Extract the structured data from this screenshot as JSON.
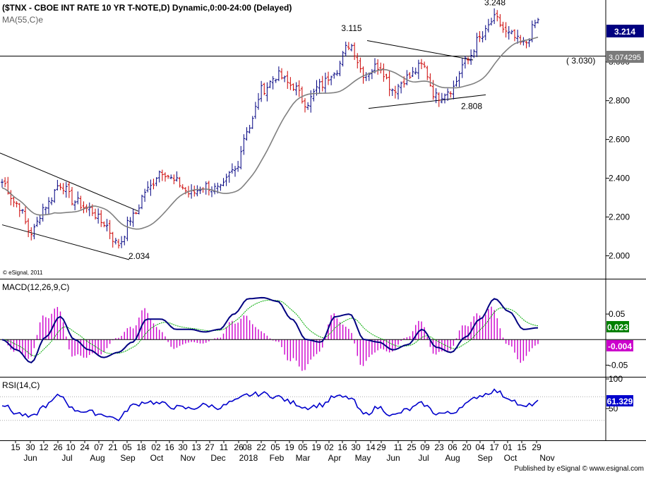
{
  "chart_data": {
    "type": "bar",
    "footer": "Published by eSignal © www.esignal.com",
    "price": {
      "title": "($TNX - CBOE INT RATE 10 YR T-NOTE,D) Dynamic,0:00-24:00 (Delayed)",
      "ma_label": "MA(55,C)e",
      "copyright": "© eSignal, 2011",
      "y_ticks": [
        "2.000",
        "2.200",
        "2.400",
        "2.600",
        "2.800",
        "3.000"
      ],
      "ylim": [
        1.9,
        3.29
      ],
      "last_value": "3.214",
      "ma_value": "3.074295",
      "level_label": "( 3.030)",
      "level": 3.03,
      "annotations": [
        {
          "text": "3.248",
          "value": 3.248
        },
        {
          "text": "3.115",
          "value": 3.115
        },
        {
          "text": "2.808",
          "value": 2.808
        },
        {
          "text": "2.034",
          "value": 2.034
        }
      ],
      "up_color": "#000080",
      "down_color": "#cc0000",
      "ma_color": "#808080",
      "anchor_closes": [
        2.38,
        2.27,
        2.12,
        2.26,
        2.37,
        2.28,
        2.24,
        2.17,
        2.06,
        2.2,
        2.34,
        2.44,
        2.38,
        2.32,
        2.36,
        2.34,
        2.44,
        2.66,
        2.86,
        2.93,
        2.88,
        2.79,
        2.88,
        2.96,
        3.09,
        2.94,
        2.98,
        2.86,
        2.92,
        2.98,
        2.82,
        2.86,
        3.0,
        3.12,
        3.22,
        3.14,
        3.09,
        3.21
      ]
    },
    "macd": {
      "label": "MACD(12,26,9,C)",
      "y_ticks": [
        "0.05",
        "-0.05"
      ],
      "ylim": [
        -0.07,
        0.115
      ],
      "macd_value": "0.023",
      "hist_value": "-0.004",
      "macd_color": "#000080",
      "signal_color": "#00aa00",
      "hist_color": "#cc00cc",
      "anchor_macd": [
        0.0,
        -0.02,
        -0.045,
        0.005,
        0.045,
        0.0,
        -0.02,
        -0.035,
        -0.025,
        -0.005,
        0.04,
        0.04,
        0.02,
        0.02,
        0.015,
        0.02,
        0.05,
        0.08,
        0.082,
        0.075,
        0.04,
        0.0,
        -0.005,
        0.045,
        0.05,
        0.0,
        -0.005,
        -0.02,
        -0.01,
        0.02,
        -0.015,
        -0.025,
        0.005,
        0.04,
        0.08,
        0.055,
        0.02,
        0.023
      ]
    },
    "rsi": {
      "label": "RSI(14,C)",
      "y_ticks": [
        "100",
        "50"
      ],
      "ylim": [
        0,
        100
      ],
      "value": "61.329",
      "line_color": "#0000cc",
      "anchor_rsi": [
        57,
        42,
        35,
        55,
        72,
        48,
        44,
        40,
        32,
        55,
        62,
        58,
        52,
        50,
        56,
        52,
        62,
        73,
        75,
        70,
        60,
        52,
        56,
        70,
        68,
        40,
        52,
        38,
        48,
        58,
        42,
        42,
        58,
        72,
        80,
        68,
        52,
        61
      ]
    },
    "x_axis": {
      "day_labels": [
        "15",
        "30",
        "12",
        "26",
        "10",
        "24",
        "07",
        "21",
        "05",
        "18",
        "02",
        "16",
        "30",
        "13",
        "27",
        "11",
        "26",
        "08",
        "22",
        "05",
        "19",
        "05",
        "19",
        "02",
        "16",
        "30",
        "14",
        "29",
        "11",
        "25",
        "09",
        "23",
        "06",
        "20",
        "04",
        "17",
        "01",
        "15",
        "29"
      ],
      "month_labels": [
        "Jun",
        "Jul",
        "Aug",
        "Sep",
        "Oct",
        "Nov",
        "Dec",
        "2018",
        "Feb",
        "Mar",
        "Apr",
        "May",
        "Jun",
        "Jul",
        "Aug",
        "Sep",
        "Oct",
        "Nov"
      ]
    }
  }
}
